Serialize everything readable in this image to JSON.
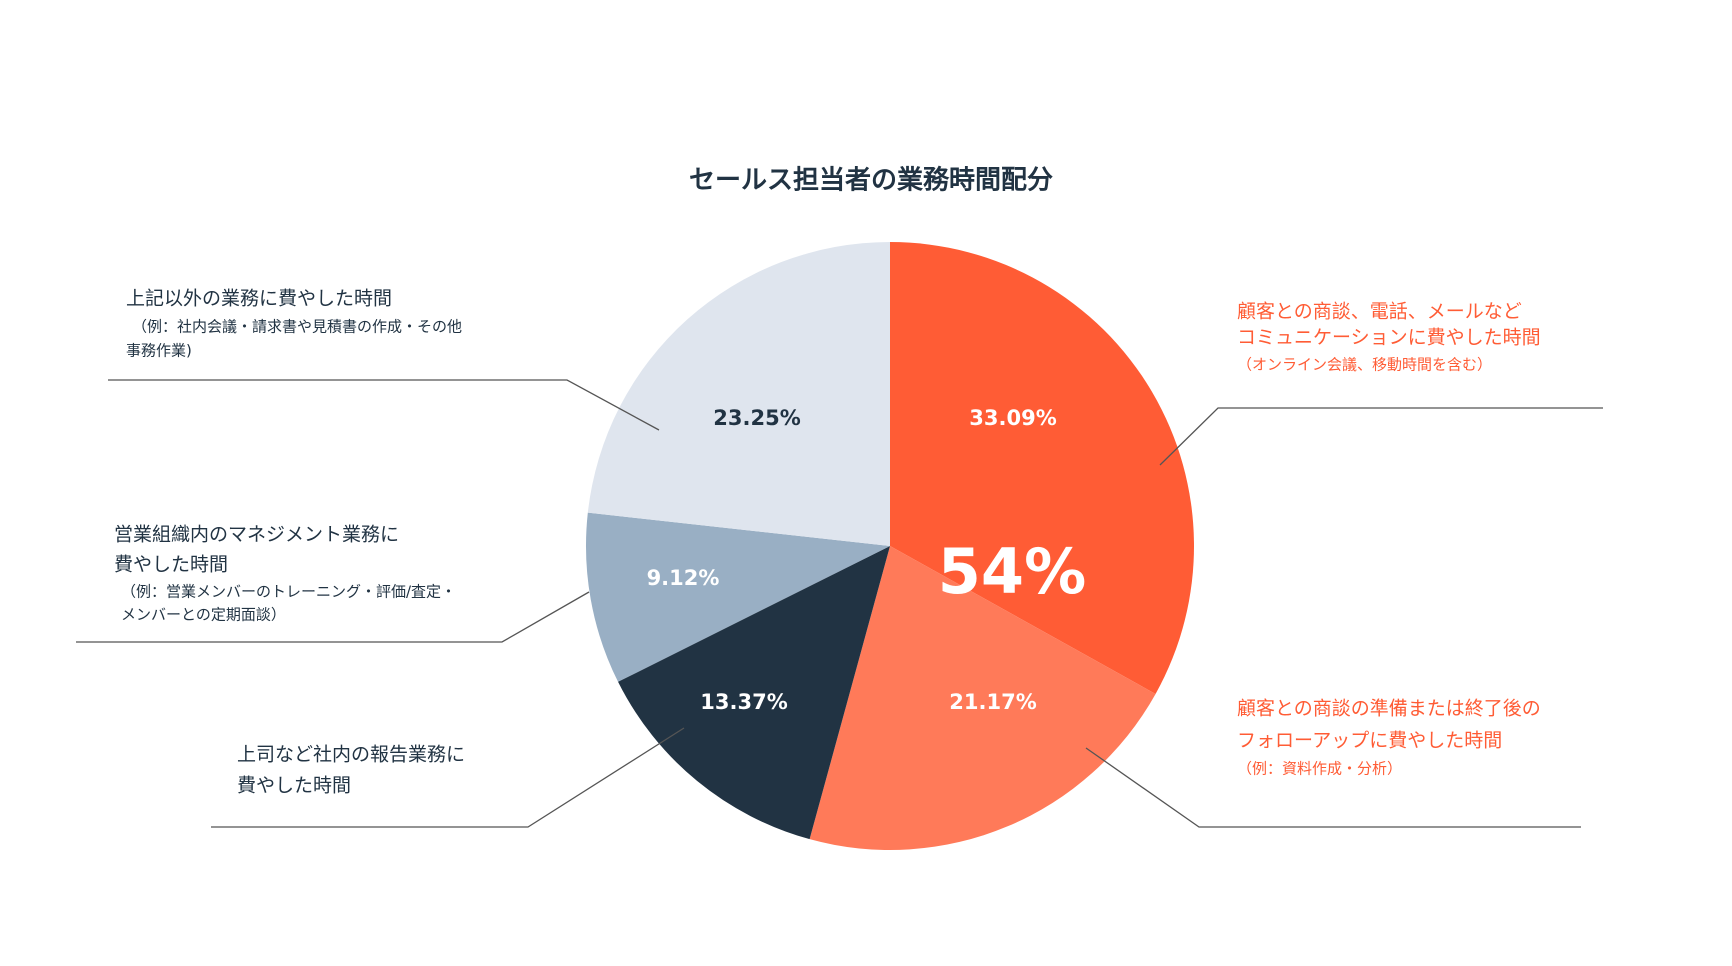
{
  "chart_data": {
    "type": "pie",
    "title": "セールス担当者の業務時間配分",
    "values": [
      33.09,
      21.17,
      13.37,
      9.12,
      23.25
    ],
    "value_labels": [
      "33.09%",
      "21.17%",
      "13.37%",
      "9.12%",
      "23.25%"
    ],
    "colors": [
      "#ff5c35",
      "#ff7a59",
      "#213343",
      "#99afc4",
      "#dfe5ee"
    ],
    "value_label_colors": [
      "#ffffff",
      "#ffffff",
      "#ffffff",
      "#ffffff",
      "#213343"
    ],
    "categories": [
      [
        "顧客との商談、電話、メールなど",
        "コミュニケーションに費やした時間"
      ],
      [
        "顧客との商談の準備または終了後の",
        "フォローアップに費やした時間"
      ],
      [
        "上司など社内の報告業務に",
        "費やした時間"
      ],
      [
        "営業組織内のマネジメント業務に",
        "費やした時間"
      ],
      [
        "上記以外の業務に費やした時間"
      ]
    ],
    "notes": [
      [
        "（オンライン会議、移動時間を含む）"
      ],
      [
        "（例：資料作成・分析）"
      ],
      [],
      [
        "（例：営業メンバーのトレーニング・評価/査定・",
        "メンバーとの定期面談）"
      ],
      [
        "（例：社内会議・請求書や見積書の作成・その他",
        "事務作業)"
      ]
    ],
    "label_colors": [
      "#ff5c35",
      "#ff5c35",
      "#213343",
      "#213343",
      "#213343"
    ],
    "annotation": "54%"
  }
}
